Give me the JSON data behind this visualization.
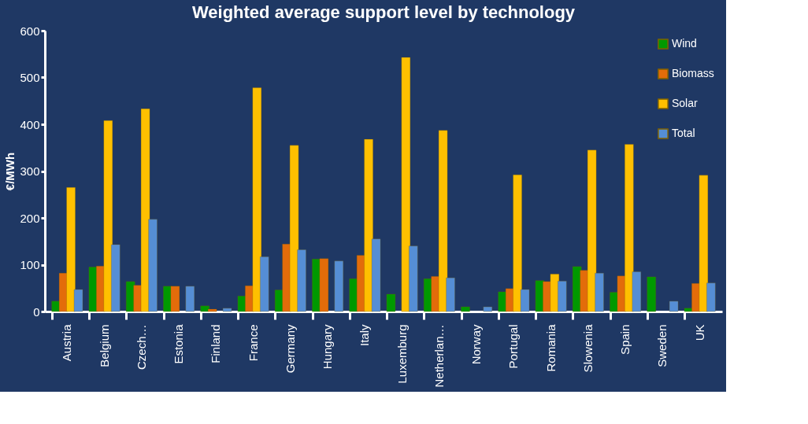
{
  "chart_data": {
    "type": "bar",
    "title": "Weighted average support level by technology",
    "ylabel": "€/MWh",
    "categories": [
      "Austria",
      "Belgium",
      "Czech…",
      "Estonia",
      "Finland",
      "France",
      "Germany",
      "Hungary",
      "Italy",
      "Luxemburg",
      "Netherlan…",
      "Norway",
      "Portugal",
      "Romania",
      "Slowenia",
      "Spain",
      "Sweden",
      "UK"
    ],
    "series": [
      {
        "name": "Wind",
        "color": "#009900",
        "values": [
          22,
          95,
          64,
          54,
          12,
          33,
          46,
          112,
          70,
          37,
          70,
          10,
          42,
          66,
          96,
          41,
          74,
          7
        ]
      },
      {
        "name": "Biomass",
        "color": "#e36c0a",
        "values": [
          82,
          97,
          56,
          54,
          5,
          55,
          144,
          113,
          120,
          null,
          75,
          null,
          49,
          64,
          88,
          76,
          null,
          60
        ]
      },
      {
        "name": "Solar",
        "color": "#ffc000",
        "values": [
          265,
          408,
          433,
          null,
          null,
          478,
          355,
          null,
          368,
          543,
          387,
          null,
          292,
          80,
          345,
          357,
          null,
          291
        ]
      },
      {
        "name": "Total",
        "color": "#558ed5",
        "values": [
          47,
          143,
          197,
          54,
          7,
          117,
          132,
          108,
          155,
          140,
          72,
          10,
          47,
          65,
          82,
          85,
          22,
          61
        ]
      }
    ],
    "ylim": [
      0,
      600
    ],
    "yticks": [
      0,
      100,
      200,
      300,
      400,
      500,
      600
    ],
    "grid": false,
    "legend": "top right"
  }
}
